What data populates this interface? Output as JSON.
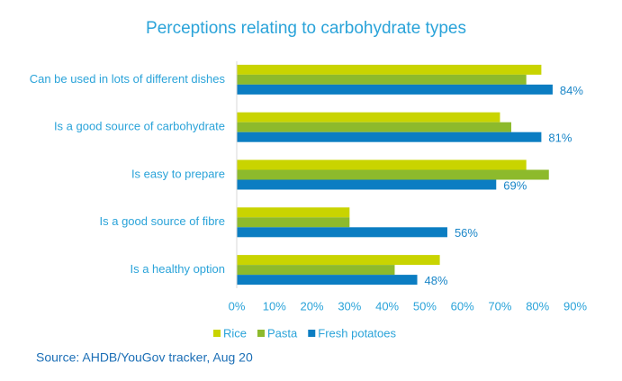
{
  "chart_data": {
    "type": "hbar",
    "title": "Perceptions relating to carbohydrate types",
    "categories": [
      "Can be used in lots of different dishes",
      "Is a good source of carbohydrate",
      "Is easy to prepare",
      "Is a good source of fibre",
      "Is a healthy option"
    ],
    "series": [
      {
        "name": "Rice",
        "color": "#c9d400",
        "values": [
          81,
          70,
          77,
          30,
          54
        ]
      },
      {
        "name": "Pasta",
        "color": "#8dba2c",
        "values": [
          77,
          73,
          83,
          30,
          42
        ]
      },
      {
        "name": "Fresh potatoes",
        "color": "#0b7dc2",
        "values": [
          84,
          81,
          69,
          56,
          48
        ],
        "value_labels": [
          "84%",
          "81%",
          "69%",
          "56%",
          "48%"
        ]
      }
    ],
    "xlim": [
      0,
      90
    ],
    "xticks": [
      {
        "value": 0,
        "label": "0%"
      },
      {
        "value": 10,
        "label": "10%"
      },
      {
        "value": 20,
        "label": "20%"
      },
      {
        "value": 30,
        "label": "30%"
      },
      {
        "value": 40,
        "label": "40%"
      },
      {
        "value": 50,
        "label": "50%"
      },
      {
        "value": 60,
        "label": "60%"
      },
      {
        "value": 70,
        "label": "70%"
      },
      {
        "value": 80,
        "label": "80%"
      },
      {
        "value": 90,
        "label": "90%"
      }
    ],
    "legend": "bottom",
    "source": "Source: AHDB/YouGov tracker, Aug 20"
  }
}
